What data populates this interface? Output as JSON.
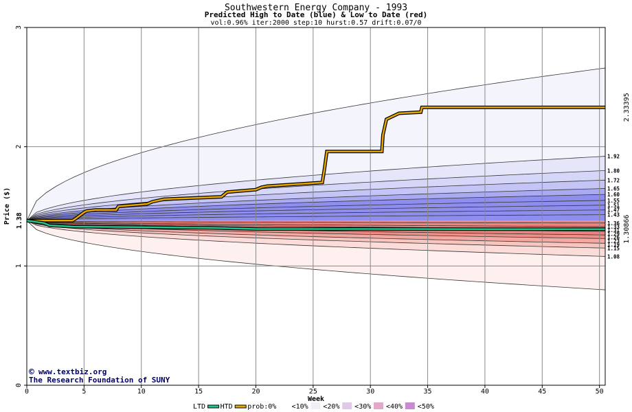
{
  "header": {
    "title": "Southwestern Energy Company - 1993",
    "subtitle": "Predicted High to Date (blue) &  Low to Date (red)",
    "params": "vol:0.96% iter:2000 step:10 hurst:0.57 drift:0.07/0"
  },
  "credits": {
    "site": "www.textbiz.org",
    "org": "The Research Foundation of SUNY"
  },
  "legend": {
    "ltd": "LTD",
    "htd": "HTD",
    "prob": "prob:0%",
    "b10": "<10%",
    "b20": "<20%",
    "b30": "<30%",
    "b40": "<40%",
    "b50": "<50%"
  },
  "colors": {
    "ltd_line": "#20c890",
    "htd_line": "#e8a800",
    "blue_bands": [
      "#f4f4fc",
      "#e6e6fa",
      "#d6d6f8",
      "#c4c4f6",
      "#aaaaf2",
      "#8e8eee"
    ],
    "red_bands": [
      "#fdf0ee",
      "#fbdcd8",
      "#f8c4be",
      "#f4a8a2",
      "#f08e88",
      "#ee8480"
    ],
    "label_left": "#008060",
    "label_right_blue": "#20a070",
    "label_right_orange": "#9a7000"
  },
  "chart_data": {
    "type": "area",
    "title": "Southwestern Energy Company - 1993",
    "subtitle": "Predicted High to Date (blue) &  Low to Date (red)",
    "xlabel": "Week",
    "ylabel": "Price ($)",
    "xlim": [
      0,
      50.5
    ],
    "ylim": [
      0,
      3
    ],
    "xticks": [
      0,
      5,
      10,
      15,
      20,
      25,
      30,
      35,
      40,
      45,
      50
    ],
    "yticks": [
      0,
      1,
      2,
      3
    ],
    "grid": true,
    "start_price": 1.38,
    "start_label": "1.38",
    "high_quantiles_end": [
      2.66,
      1.92,
      1.8,
      1.72,
      1.65,
      1.6,
      1.55,
      1.51,
      1.47,
      1.43
    ],
    "high_quantile_labels": [
      "1.92",
      "1.80",
      "1.72",
      "1.65",
      "1.60",
      "1.55",
      "1.51",
      "1.47",
      "1.43"
    ],
    "low_quantiles_end": [
      1.36,
      1.33,
      1.31,
      1.29,
      1.26,
      1.23,
      1.19,
      1.15,
      1.08,
      0.8
    ],
    "low_quantile_labels": [
      "1.36",
      "1.33",
      "1.31",
      "1.29",
      "1.26",
      "1.23",
      "1.19",
      "1.15",
      "1.08"
    ],
    "htd_series": {
      "name": "HTD",
      "x": [
        0,
        4,
        4.3,
        5,
        5.2,
        6,
        7.8,
        8,
        10.5,
        11,
        12,
        17,
        17.5,
        20,
        20.5,
        21,
        25.8,
        26,
        26.2,
        31,
        31.1,
        31.4,
        32.5,
        34.4,
        34.5,
        50.5
      ],
      "y": [
        1.38,
        1.38,
        1.4,
        1.45,
        1.46,
        1.47,
        1.47,
        1.5,
        1.52,
        1.54,
        1.56,
        1.58,
        1.62,
        1.64,
        1.66,
        1.67,
        1.7,
        1.82,
        1.96,
        1.96,
        2.1,
        2.23,
        2.28,
        2.29,
        2.33,
        2.33
      ]
    },
    "ltd_series": {
      "name": "LTD",
      "x": [
        0,
        1.5,
        2,
        4,
        10,
        16,
        20,
        30,
        40,
        50.5
      ],
      "y": [
        1.38,
        1.36,
        1.34,
        1.33,
        1.325,
        1.32,
        1.31,
        1.31,
        1.309,
        1.309
      ]
    },
    "htd_end_label": "2.33395",
    "ltd_end_label": "1.30866"
  }
}
